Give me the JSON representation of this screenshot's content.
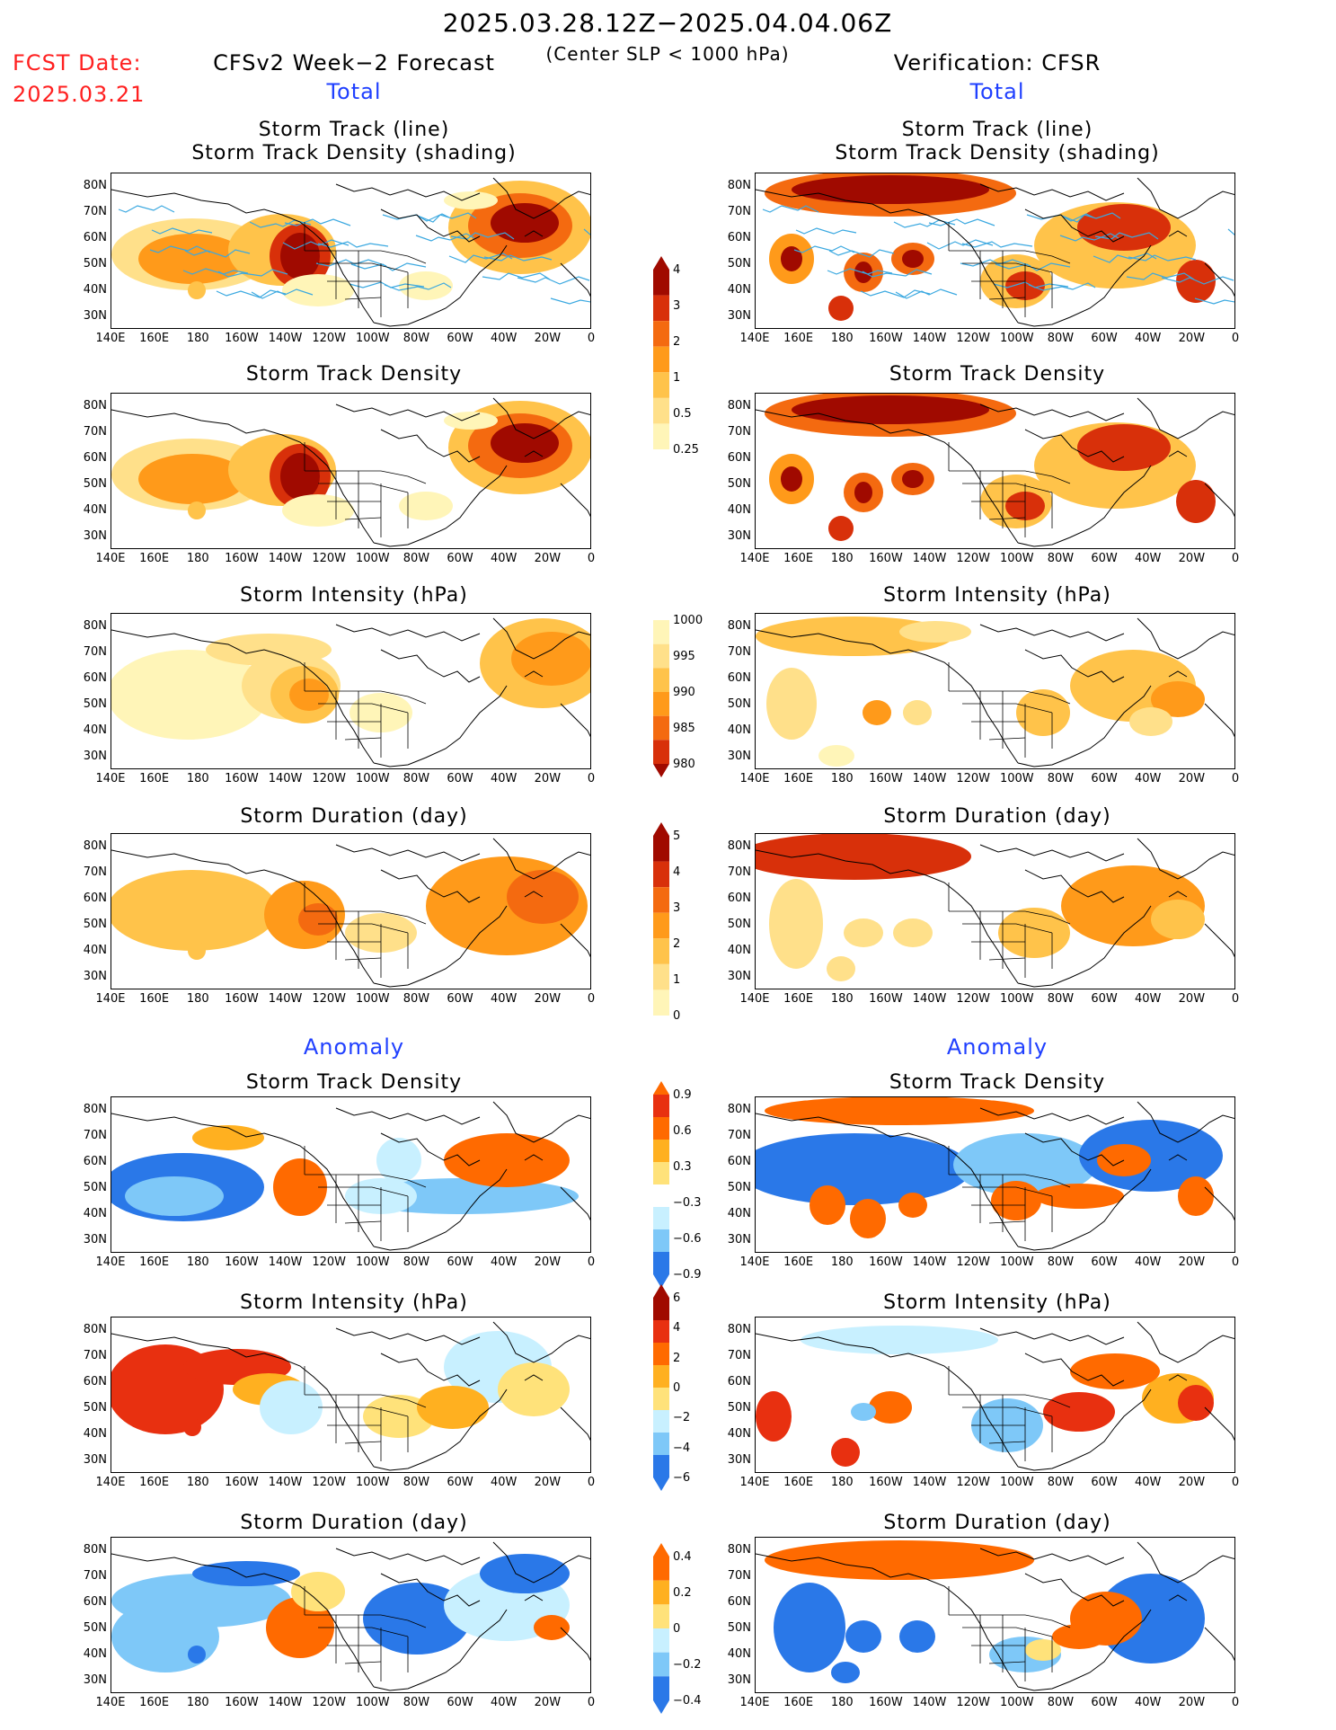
{
  "header": {
    "period": "2025.03.28.12Z−2025.04.04.06Z",
    "criterion": "(Center SLP < 1000 hPa)",
    "fcst_label": "FCST Date:",
    "fcst_date": "2025.03.21",
    "left_title": "CFSv2 Week−2 Forecast",
    "right_title": "Verification: CFSR",
    "total_left": "Total",
    "total_right": "Total",
    "anomaly_left": "Anomaly",
    "anomaly_right": "Anomaly"
  },
  "panel_titles": {
    "r1a": "Storm Track (line)",
    "r1b": "Storm Track Density (shading)",
    "r2": "Storm Track Density",
    "r3": "Storm Intensity (hPa)",
    "r4": "Storm Duration (day)",
    "r5": "Storm Track Density",
    "r6": "Storm Intensity (hPa)",
    "r7": "Storm Duration (day)"
  },
  "axes": {
    "lat_labels": [
      "80N",
      "70N",
      "60N",
      "50N",
      "40N",
      "30N"
    ],
    "lon_labels": [
      "140E",
      "160E",
      "180",
      "160W",
      "140W",
      "120W",
      "100W",
      "80W",
      "60W",
      "40W",
      "20W",
      "0"
    ]
  },
  "colorbars": {
    "density_total": [
      "4",
      "3",
      "2",
      "1",
      "0.5",
      "0.25"
    ],
    "intensity_total": [
      "1000",
      "995",
      "990",
      "985",
      "980"
    ],
    "duration_total": [
      "5",
      "4",
      "3",
      "2",
      "1",
      "0"
    ],
    "density_anom": [
      "0.9",
      "0.6",
      "0.3",
      "−0.3",
      "−0.6",
      "−0.9"
    ],
    "intensity_anom": [
      "6",
      "4",
      "2",
      "0",
      "−2",
      "−4",
      "−6"
    ],
    "duration_anom": [
      "0.4",
      "0.2",
      "0",
      "−0.2",
      "−0.4"
    ]
  },
  "colors": {
    "total_scale": [
      "#fff5b8",
      "#ffe08a",
      "#ffc34a",
      "#ff9a1a",
      "#f46a10",
      "#d8300a",
      "#a00a00"
    ],
    "anom_warm": [
      "#ffe27a",
      "#ffb020",
      "#ff6a00",
      "#e83010",
      "#a00a00"
    ],
    "anom_cool": [
      "#c8f0ff",
      "#7ec8f8",
      "#2a78e8",
      "#1450d0"
    ],
    "track_line": "#3aa8e0",
    "heading_blue": "#2040ff",
    "date_red": "#ff2020"
  }
}
